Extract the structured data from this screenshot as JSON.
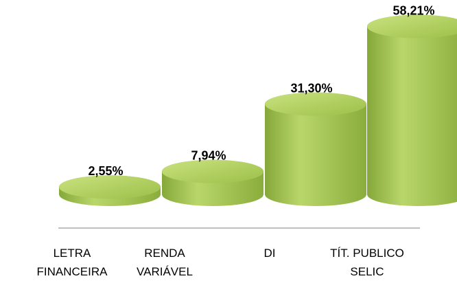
{
  "chart_data": {
    "type": "bar",
    "categories": [
      "LETRA FINANCEIRA",
      "RENDA VARIÁVEL",
      "DI",
      "TÍT. PUBLICO SELIC"
    ],
    "values": [
      2.55,
      7.94,
      31.3,
      58.21
    ],
    "value_labels": [
      "2,55%",
      "7,94%",
      "31,30%",
      "58,21%"
    ],
    "color": "#9bbb44"
  }
}
